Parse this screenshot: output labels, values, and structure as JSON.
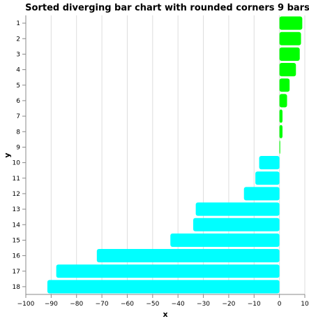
{
  "chart_data": {
    "type": "bar",
    "orientation": "horizontal",
    "title": "Sorted diverging bar chart with rounded corners 9 bars",
    "xlabel": "x",
    "ylabel": "y",
    "xlim": [
      -100,
      10
    ],
    "x_ticks": [
      -100,
      -90,
      -80,
      -70,
      -60,
      -50,
      -40,
      -30,
      -20,
      -10,
      0,
      10
    ],
    "grid": true,
    "categories": [
      "1",
      "2",
      "3",
      "4",
      "5",
      "6",
      "7",
      "8",
      "9",
      "10",
      "11",
      "12",
      "13",
      "14",
      "15",
      "16",
      "17",
      "18"
    ],
    "values": [
      9,
      8.5,
      8,
      6.5,
      4,
      3,
      1.2,
      1.2,
      0.3,
      -8,
      -9.5,
      -14,
      -33,
      -34,
      -43,
      -72,
      -88,
      -91.5
    ],
    "positive_color": "#00ff00",
    "negative_color": "#00ffff"
  }
}
